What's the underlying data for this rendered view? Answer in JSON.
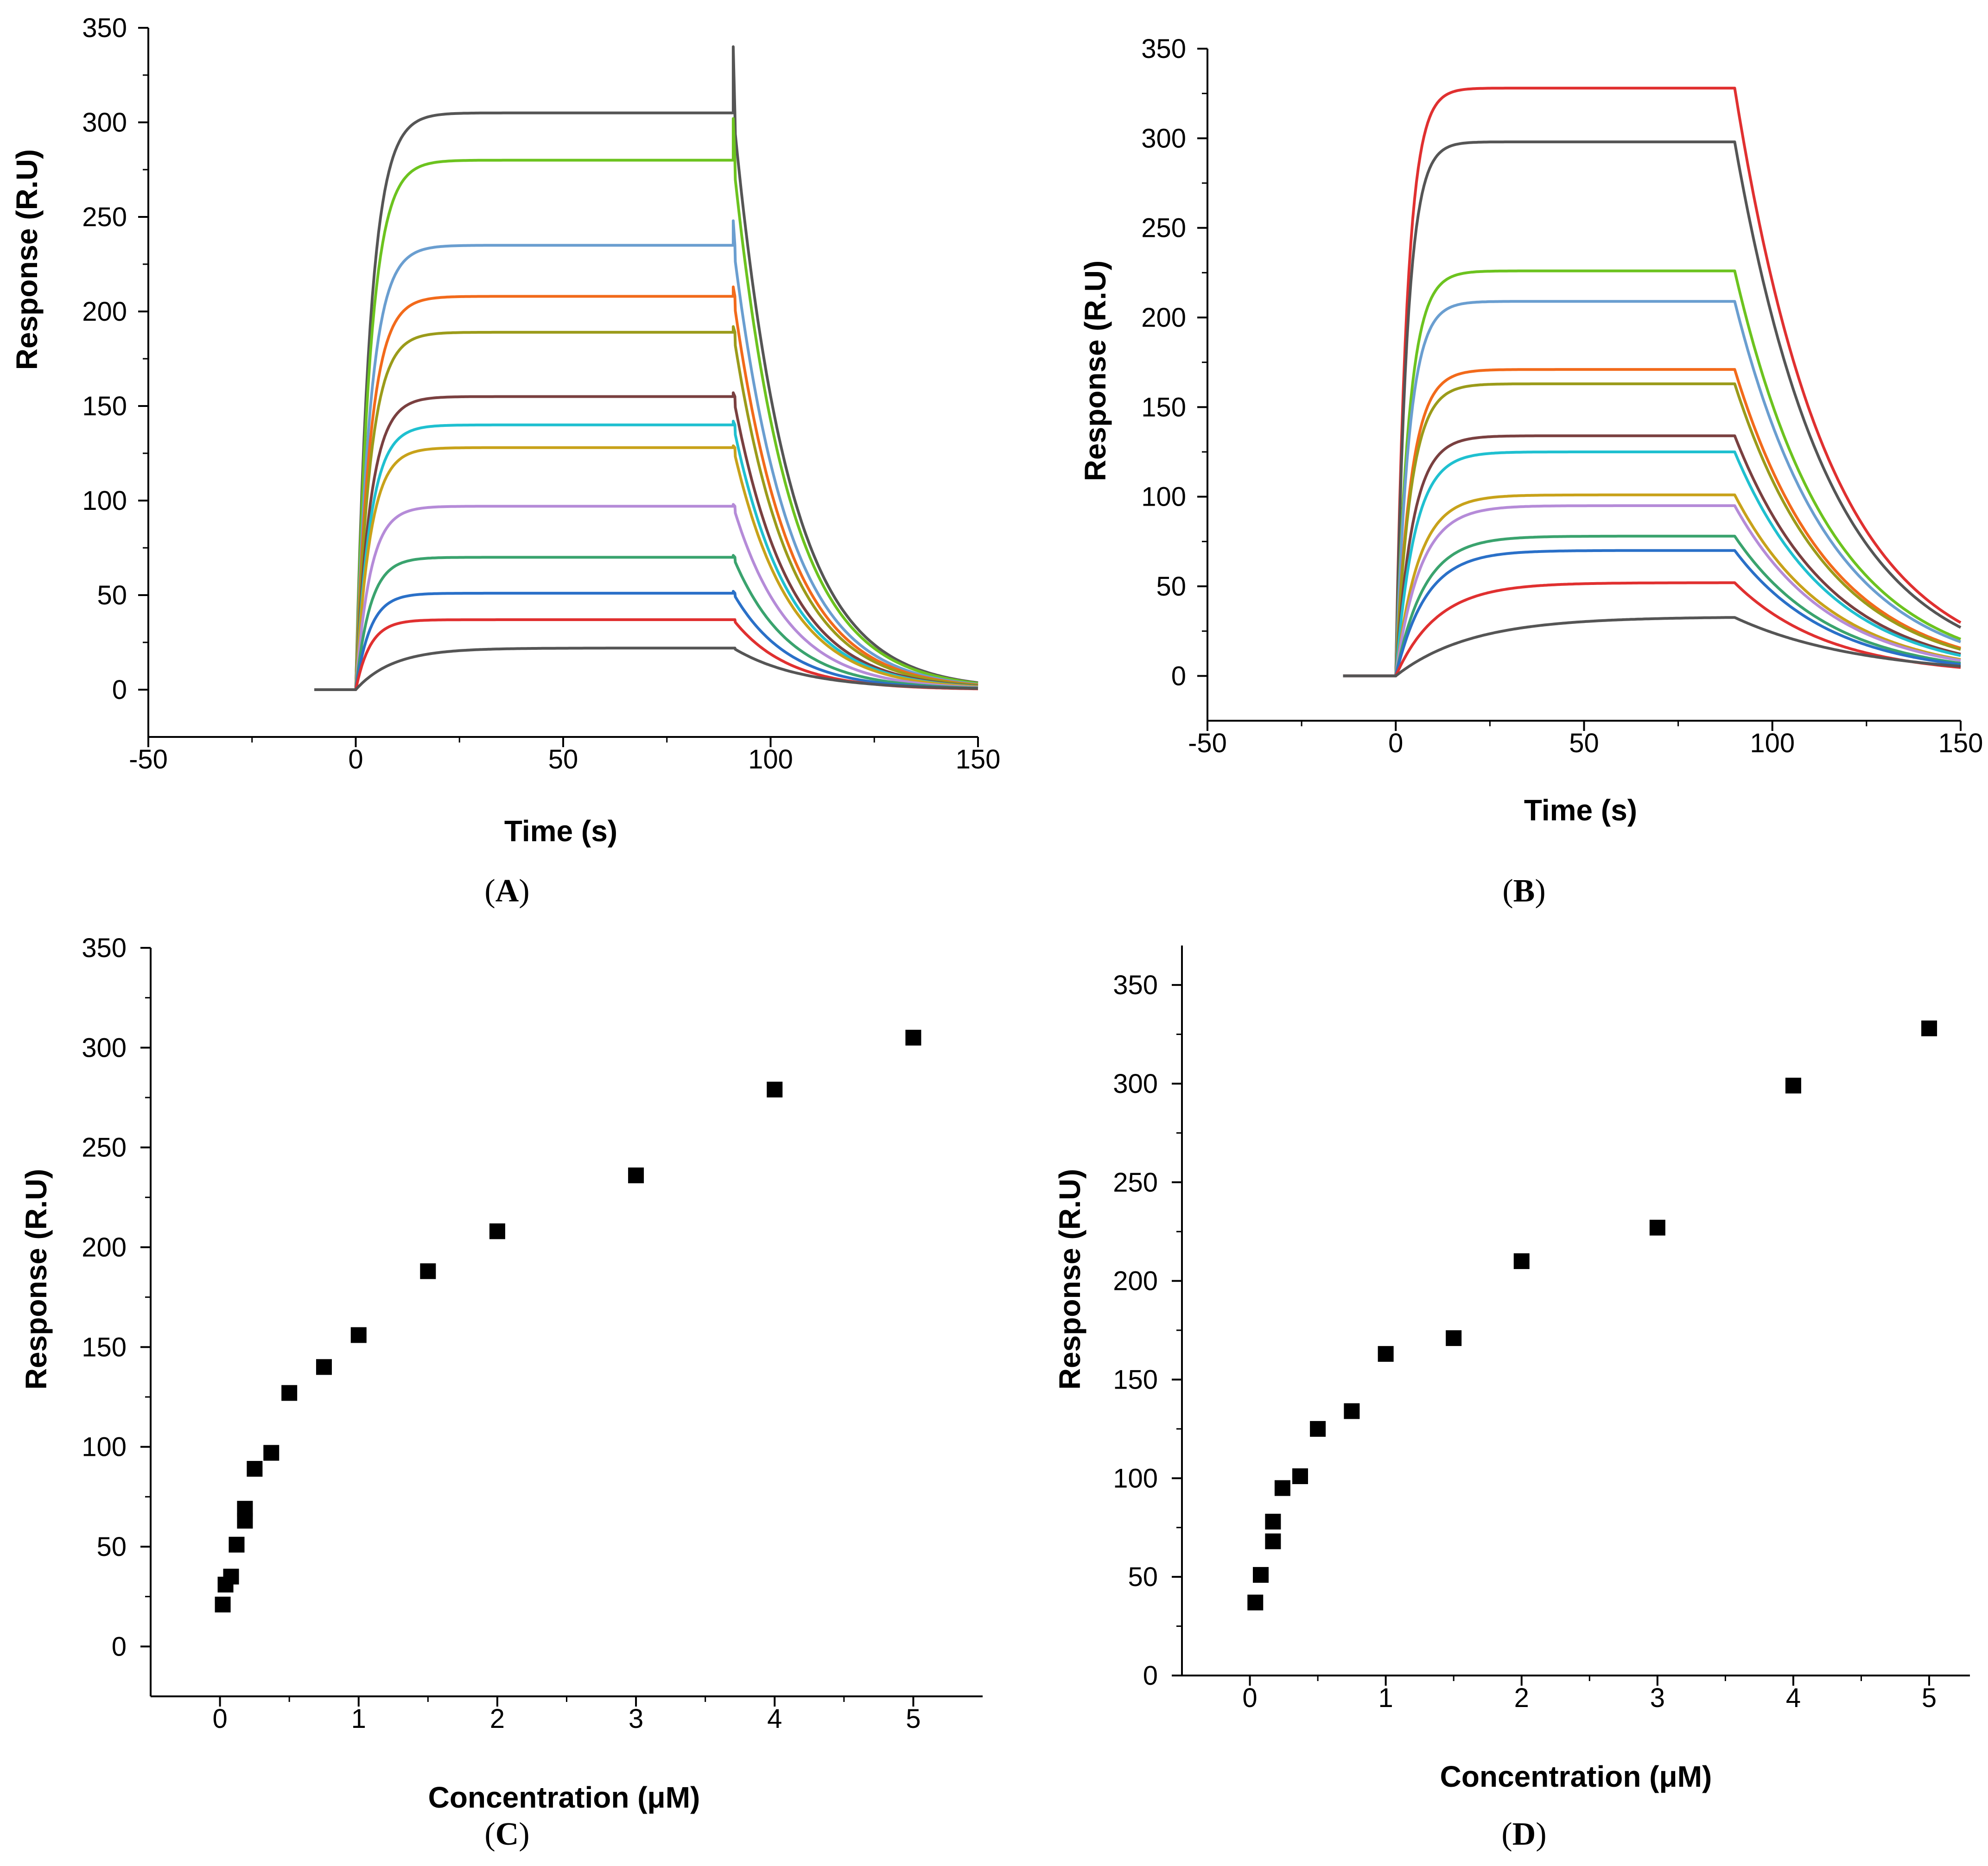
{
  "chart_data": [
    {
      "id": "A",
      "type": "line",
      "panel_label": "A",
      "xlabel": "Time (s)",
      "ylabel": "Response (R.U)",
      "xlim": [
        -50,
        150
      ],
      "ylim": [
        -25,
        350
      ],
      "xticks": [
        -50,
        0,
        50,
        100,
        150
      ],
      "yticks": [
        0,
        50,
        100,
        150,
        200,
        250,
        300,
        350
      ],
      "assoc_start": 0,
      "dissoc_start": 91,
      "x_end": 150,
      "baseline_start": -10,
      "series": [
        {
          "name": "s1",
          "color": "#555555",
          "plateau": 305,
          "tau": 3.5,
          "koff": 0.075,
          "spike": 340
        },
        {
          "name": "s2",
          "color": "#6cc31f",
          "plateau": 280,
          "tau": 3.5,
          "koff": 0.075,
          "spike": 302
        },
        {
          "name": "s3",
          "color": "#6a9ed0",
          "plateau": 235,
          "tau": 3.5,
          "koff": 0.075,
          "spike": 248
        },
        {
          "name": "s4",
          "color": "#f26a1b",
          "plateau": 208,
          "tau": 3.5,
          "koff": 0.075,
          "spike": 213
        },
        {
          "name": "s5",
          "color": "#9b9b1a",
          "plateau": 189,
          "tau": 3.5,
          "koff": 0.075,
          "spike": 192
        },
        {
          "name": "s6",
          "color": "#7a4040",
          "plateau": 155,
          "tau": 3.5,
          "koff": 0.075,
          "spike": 157
        },
        {
          "name": "s7",
          "color": "#1fc0d0",
          "plateau": 140,
          "tau": 3.5,
          "koff": 0.075,
          "spike": 142
        },
        {
          "name": "s8",
          "color": "#c8a21a",
          "plateau": 128,
          "tau": 3.5,
          "koff": 0.075,
          "spike": 129
        },
        {
          "name": "s9",
          "color": "#b58bd8",
          "plateau": 97,
          "tau": 3.5,
          "koff": 0.075,
          "spike": 98
        },
        {
          "name": "s10",
          "color": "#3aa36e",
          "plateau": 70,
          "tau": 3.5,
          "koff": 0.075,
          "spike": 71
        },
        {
          "name": "s11",
          "color": "#2a70c8",
          "plateau": 51,
          "tau": 3.5,
          "koff": 0.075,
          "spike": 52
        },
        {
          "name": "s12",
          "color": "#e03030",
          "plateau": 37,
          "tau": 3.5,
          "koff": 0.075,
          "spike": 37
        },
        {
          "name": "s13",
          "color": "#555555",
          "plateau": 22,
          "tau": 9,
          "koff": 0.06,
          "spike": 22
        }
      ]
    },
    {
      "id": "B",
      "type": "line",
      "panel_label": "B",
      "xlabel": "Time (s)",
      "ylabel": "Response (R.U)",
      "xlim": [
        -50,
        150
      ],
      "ylim": [
        -25,
        350
      ],
      "xticks": [
        -50,
        0,
        50,
        100,
        150
      ],
      "yticks": [
        0,
        50,
        100,
        150,
        200,
        250,
        300,
        350
      ],
      "assoc_start": 0,
      "dissoc_start": 90,
      "x_end": 150,
      "baseline_start": -14,
      "series": [
        {
          "name": "s1",
          "color": "#e03030",
          "plateau": 328,
          "tau": 3,
          "koff": 0.04
        },
        {
          "name": "s2",
          "color": "#555555",
          "plateau": 298,
          "tau": 3,
          "koff": 0.04
        },
        {
          "name": "s3",
          "color": "#6cc31f",
          "plateau": 226,
          "tau": 3.5,
          "koff": 0.04
        },
        {
          "name": "s4",
          "color": "#6a9ed0",
          "plateau": 209,
          "tau": 3.5,
          "koff": 0.04
        },
        {
          "name": "s5",
          "color": "#f26a1b",
          "plateau": 171,
          "tau": 4,
          "koff": 0.04
        },
        {
          "name": "s6",
          "color": "#9b9b1a",
          "plateau": 163,
          "tau": 4,
          "koff": 0.04
        },
        {
          "name": "s7",
          "color": "#7a4040",
          "plateau": 134,
          "tau": 4.5,
          "koff": 0.04
        },
        {
          "name": "s8",
          "color": "#1fc0d0",
          "plateau": 125,
          "tau": 5,
          "koff": 0.04
        },
        {
          "name": "s9",
          "color": "#c8a21a",
          "plateau": 101,
          "tau": 6,
          "koff": 0.04
        },
        {
          "name": "s10",
          "color": "#b58bd8",
          "plateau": 95,
          "tau": 6.5,
          "koff": 0.04
        },
        {
          "name": "s11",
          "color": "#3aa36e",
          "plateau": 78,
          "tau": 7.5,
          "koff": 0.04
        },
        {
          "name": "s12",
          "color": "#2a70c8",
          "plateau": 70,
          "tau": 8,
          "koff": 0.04
        },
        {
          "name": "s13",
          "color": "#e03030",
          "plateau": 52,
          "tau": 11,
          "koff": 0.04
        },
        {
          "name": "s14",
          "color": "#555555",
          "plateau": 33,
          "tau": 20,
          "koff": 0.03
        }
      ]
    },
    {
      "id": "C",
      "type": "scatter",
      "panel_label": "C",
      "xlabel": "Concentration (μM)",
      "ylabel": "Response (R.U)",
      "xlim": [
        -0.5,
        5.5
      ],
      "ylim": [
        -25,
        350
      ],
      "xticks": [
        0,
        1,
        2,
        3,
        4,
        5
      ],
      "yticks": [
        0,
        50,
        100,
        150,
        200,
        250,
        300,
        350
      ],
      "x": [
        0.02,
        0.04,
        0.08,
        0.12,
        0.18,
        0.18,
        0.25,
        0.37,
        0.5,
        0.75,
        1,
        1.5,
        2,
        3,
        4,
        5
      ],
      "y": [
        21,
        31,
        35,
        51,
        63,
        69,
        89,
        97,
        127,
        140,
        156,
        188,
        208,
        236,
        279,
        305
      ]
    },
    {
      "id": "D",
      "type": "scatter",
      "panel_label": "D",
      "xlabel": "Concentration (μM)",
      "ylabel": "Response (R.U)",
      "xlim": [
        -0.5,
        5.3
      ],
      "ylim": [
        0,
        370
      ],
      "xticks": [
        0,
        1,
        2,
        3,
        4,
        5
      ],
      "yticks": [
        0,
        50,
        100,
        150,
        200,
        250,
        300,
        350
      ],
      "x": [
        0.04,
        0.08,
        0.17,
        0.17,
        0.24,
        0.37,
        0.5,
        0.75,
        1,
        1.5,
        2,
        3,
        4,
        5
      ],
      "y": [
        37,
        51,
        68,
        78,
        95,
        101,
        125,
        134,
        163,
        171,
        210,
        227,
        299,
        328
      ]
    }
  ]
}
